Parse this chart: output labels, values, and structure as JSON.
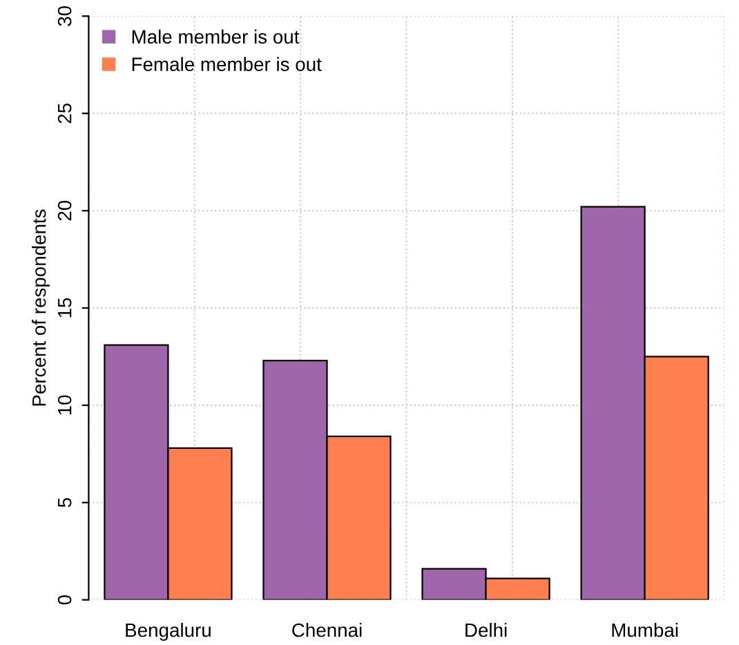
{
  "chart_data": {
    "type": "bar",
    "ylabel": "Percent of respondents",
    "categories": [
      "Bengaluru",
      "Chennai",
      "Delhi",
      "Mumbai"
    ],
    "series": [
      {
        "name": "Male member is out",
        "color": "#9e67ab",
        "values": [
          13.1,
          12.3,
          1.6,
          20.2
        ]
      },
      {
        "name": "Female member is out",
        "color": "#ff7f50",
        "values": [
          7.8,
          8.4,
          1.1,
          12.5
        ]
      }
    ],
    "ylim": [
      0,
      30
    ],
    "yticks": [
      0,
      5,
      10,
      15,
      20,
      25,
      30
    ],
    "grid": true,
    "legend": "top left"
  }
}
